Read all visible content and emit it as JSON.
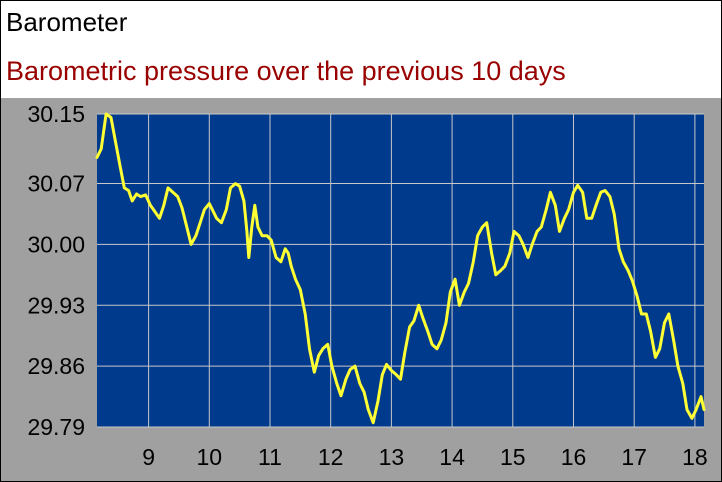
{
  "window": {
    "title": "Barometer",
    "subtitle": "Barometric pressure over the previous 10 days"
  },
  "colors": {
    "plot_background": "#003A8C",
    "line": "#FFFF33",
    "grid": "#C8C8C8",
    "frame_background": "#A0A0A0",
    "subtitle": "#990000"
  },
  "chart_data": {
    "type": "line",
    "title": "Barometric pressure over the previous 10 days",
    "xlabel": "",
    "ylabel": "",
    "xlim": [
      8.15,
      18.15
    ],
    "ylim": [
      29.79,
      30.15
    ],
    "x_ticks": [
      9,
      10,
      11,
      12,
      13,
      14,
      15,
      16,
      17,
      18
    ],
    "x_tick_labels": [
      "9",
      "10",
      "11",
      "12",
      "13",
      "14",
      "15",
      "16",
      "17",
      "18"
    ],
    "y_ticks": [
      29.79,
      29.86,
      29.93,
      30.0,
      30.07,
      30.15
    ],
    "y_tick_labels": [
      "29.79",
      "29.86",
      "29.93",
      "30.00",
      "30.07",
      "30.15"
    ],
    "grid": true,
    "legend": "none",
    "series": [
      {
        "x": [
          8.15,
          8.22,
          8.3,
          8.38,
          8.45,
          8.53,
          8.6,
          8.67,
          8.73,
          8.8,
          8.87,
          8.95,
          9.03,
          9.1,
          9.18,
          9.25,
          9.32,
          9.4,
          9.48,
          9.55,
          9.63,
          9.7,
          9.78,
          9.85,
          9.92,
          10.0,
          10.05,
          10.12,
          10.2,
          10.28,
          10.35,
          10.43,
          10.5,
          10.57,
          10.62,
          10.65,
          10.7,
          10.75,
          10.8,
          10.87,
          10.95,
          11.02,
          11.1,
          11.18,
          11.25,
          11.3,
          11.35,
          11.42,
          11.5,
          11.58,
          11.65,
          11.73,
          11.8,
          11.87,
          11.95,
          12.02,
          12.1,
          12.17,
          12.25,
          12.32,
          12.4,
          12.48,
          12.55,
          12.62,
          12.7,
          12.78,
          12.85,
          12.92,
          13.0,
          13.08,
          13.15,
          13.22,
          13.3,
          13.37,
          13.45,
          13.52,
          13.6,
          13.67,
          13.75,
          13.82,
          13.9,
          13.97,
          14.05,
          14.12,
          14.2,
          14.27,
          14.35,
          14.42,
          14.5,
          14.57,
          14.65,
          14.72,
          14.8,
          14.87,
          14.95,
          15.02,
          15.1,
          15.17,
          15.25,
          15.32,
          15.4,
          15.47,
          15.55,
          15.62,
          15.7,
          15.77,
          15.85,
          15.92,
          16.0,
          16.07,
          16.15,
          16.22,
          16.3,
          16.37,
          16.45,
          16.52,
          16.6,
          16.67,
          16.75,
          16.82,
          16.9,
          16.97,
          17.05,
          17.12,
          17.2,
          17.27,
          17.35,
          17.42,
          17.5,
          17.57,
          17.65,
          17.72,
          17.8,
          17.87,
          17.95,
          18.02,
          18.1,
          18.15
        ],
        "y": [
          30.1,
          30.11,
          30.15,
          30.146,
          30.12,
          30.09,
          30.065,
          30.062,
          30.05,
          30.058,
          30.055,
          30.057,
          30.045,
          30.038,
          30.03,
          30.045,
          30.065,
          30.06,
          30.055,
          30.042,
          30.02,
          30.0,
          30.01,
          30.025,
          30.04,
          30.047,
          30.04,
          30.03,
          30.025,
          30.04,
          30.065,
          30.07,
          30.067,
          30.05,
          30.015,
          29.985,
          30.02,
          30.045,
          30.02,
          30.01,
          30.01,
          30.005,
          29.985,
          29.98,
          29.995,
          29.99,
          29.975,
          29.96,
          29.948,
          29.92,
          29.88,
          29.853,
          29.872,
          29.88,
          29.885,
          29.86,
          29.84,
          29.826,
          29.845,
          29.856,
          29.86,
          29.84,
          29.83,
          29.81,
          29.795,
          29.82,
          29.85,
          29.862,
          29.855,
          29.85,
          29.845,
          29.875,
          29.905,
          29.912,
          29.93,
          29.915,
          29.9,
          29.885,
          29.88,
          29.89,
          29.91,
          29.945,
          29.96,
          29.93,
          29.945,
          29.955,
          29.98,
          30.01,
          30.02,
          30.025,
          29.99,
          29.965,
          29.97,
          29.975,
          29.99,
          30.015,
          30.01,
          30.0,
          29.985,
          30.0,
          30.015,
          30.02,
          30.04,
          30.06,
          30.045,
          30.015,
          30.03,
          30.04,
          30.06,
          30.068,
          30.06,
          30.03,
          30.03,
          30.045,
          30.06,
          30.062,
          30.055,
          30.035,
          29.995,
          29.98,
          29.97,
          29.958,
          29.94,
          29.92,
          29.92,
          29.9,
          29.87,
          29.88,
          29.91,
          29.92,
          29.89,
          29.86,
          29.84,
          29.81,
          29.8,
          29.81,
          29.825,
          29.81
        ]
      }
    ]
  }
}
